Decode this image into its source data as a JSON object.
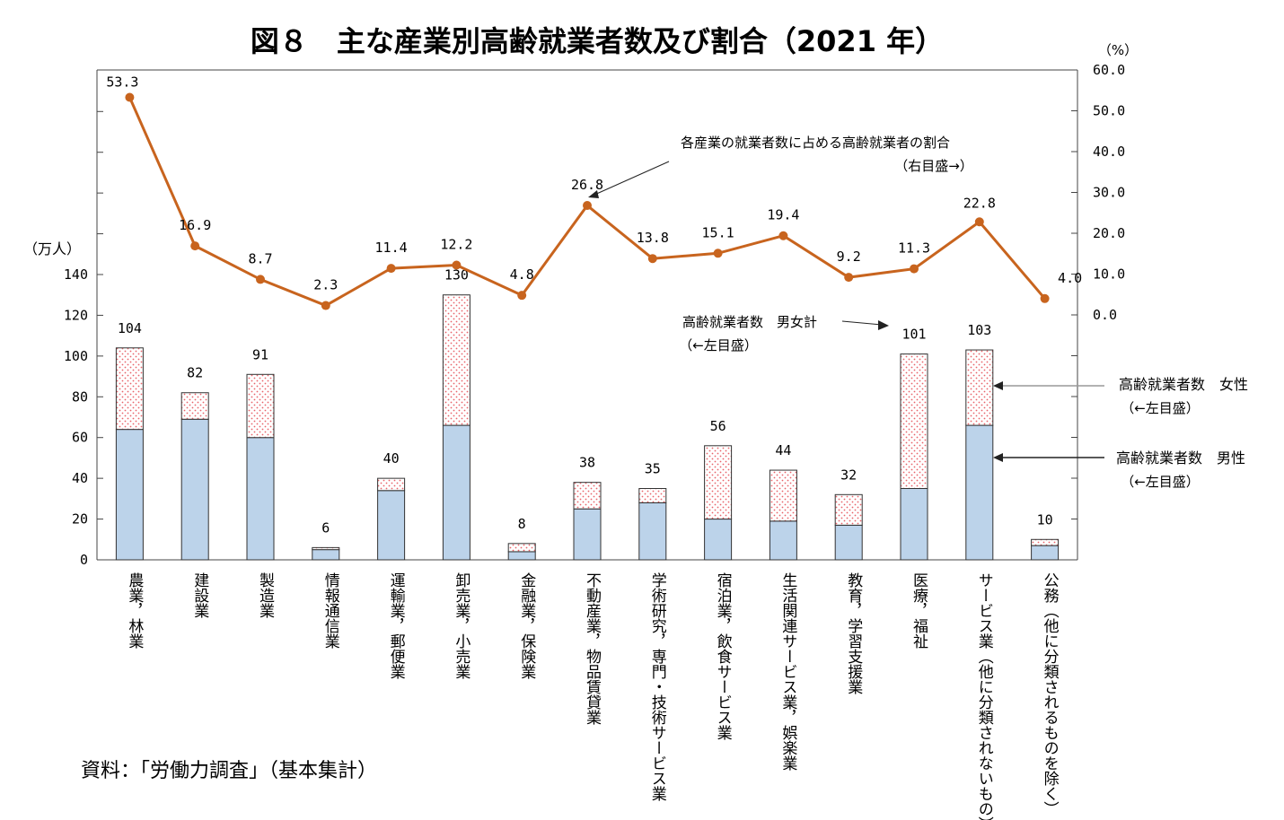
{
  "chart_data": {
    "type": "bar",
    "title": "図８　主な産業別高齢就業者数及び割合（2021 年）",
    "source": "資料：「労働力調査」（基本集計）",
    "left_axis": {
      "unit": "（万人）",
      "range": [
        0,
        140
      ],
      "ticks": [
        "0",
        "20",
        "40",
        "60",
        "80",
        "100",
        "120",
        "140"
      ]
    },
    "right_axis": {
      "unit": "（%）",
      "range": [
        0,
        60
      ],
      "ticks": [
        "0.0",
        "10.0",
        "20.0",
        "30.0",
        "40.0",
        "50.0",
        "60.0"
      ]
    },
    "categories": [
      "農業，林業",
      "建設業",
      "製造業",
      "情報通信業",
      "運輸業，郵便業",
      "卸売業，小売業",
      "金融業，保険業",
      "不動産業，物品賃貸業",
      "学術研究，専門・技術サービス業",
      "宿泊業，飲食サービス業",
      "生活関連サービス業，娯楽業",
      "教育，学習支援業",
      "医療，福祉",
      "サービス業（他に分類されないもの）",
      "公務（他に分類されるものを除く）"
    ],
    "totals": [
      104,
      82,
      91,
      6,
      40,
      130,
      8,
      38,
      35,
      56,
      44,
      32,
      101,
      103,
      10
    ],
    "total_labels": [
      "104",
      "82",
      "91",
      "6",
      "40",
      "130",
      "8",
      "38",
      "35",
      "56",
      "44",
      "32",
      "101",
      "103",
      "10"
    ],
    "series": [
      {
        "name": "高齢就業者数 男性",
        "values": [
          64,
          69,
          60,
          5,
          34,
          66,
          4,
          25,
          28,
          20,
          19,
          17,
          35,
          66,
          7
        ]
      },
      {
        "name": "高齢就業者数 女性",
        "values": [
          40,
          13,
          31,
          1,
          6,
          64,
          4,
          13,
          7,
          36,
          25,
          15,
          66,
          37,
          3
        ]
      }
    ],
    "ratio_series": {
      "name": "各産業の就業者数に占める高齢就業者の割合",
      "values": [
        53.3,
        16.9,
        8.7,
        2.3,
        11.4,
        12.2,
        4.8,
        26.8,
        13.8,
        15.1,
        19.4,
        9.2,
        11.3,
        22.8,
        4.0
      ],
      "labels": [
        "53.3",
        "16.9",
        "8.7",
        "2.3",
        "11.4",
        "12.2",
        "4.8",
        "26.8",
        "13.8",
        "15.1",
        "19.4",
        "9.2",
        "11.3",
        "22.8",
        "4.0"
      ]
    },
    "annotations": {
      "ratio_line": [
        "各産業の就業者数に占める高齢就業者の割合",
        "（右目盛→）"
      ],
      "total": [
        "高齢就業者数　男女計",
        "（←左目盛）"
      ],
      "female": [
        "高齢就業者数　女性",
        "（←左目盛）"
      ],
      "male": [
        "高齢就業者数　男性",
        "（←左目盛）"
      ]
    },
    "colors": {
      "male": "#bcd3ea",
      "female_dots": "#e8636a",
      "line": "#c8641e",
      "axis": "#444444"
    }
  }
}
